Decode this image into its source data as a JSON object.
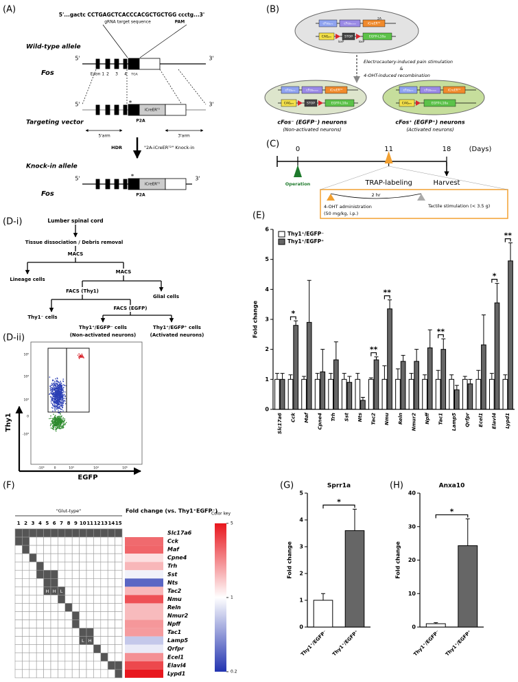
{
  "panel_labels": [
    "(A)",
    "(B)",
    "(C)",
    "(D-i)",
    "(D-ii)",
    "(E)",
    "(F)",
    "(G)",
    "(H)"
  ],
  "panel_a": {
    "sequence": "5'...gactc CCTGAGCTCACCCACGCTGCTGG ccctg...3'",
    "grna": "gRNA target sequence",
    "pam": "PAM",
    "wild_type": "Wild-type allele",
    "five_prime": "5'",
    "three_prime": "3'",
    "gene": "Fos",
    "exons": [
      "Exon 1",
      "2",
      "3",
      "4"
    ],
    "stop": "TGA",
    "targeting": "Targeting vector",
    "p2a": "P2A",
    "cre": "iCreERᵀ²",
    "arm5": "5'arm",
    "arm3": "3'arm",
    "hdr": "HDR",
    "knockin_text": "\"2A-iCreERᵀ²\" Knock-in",
    "knockin": "Knock-in allele",
    "star": "*"
  },
  "panel_b": {
    "fos_pro": "cFosₚᵣₒ",
    "fos_exon": "cFosₑₓₒₙ",
    "cre": "iCreERᵀ²",
    "two_a": "2A",
    "cag": "CAGₚᵣₒ",
    "stop": "STOP",
    "egfp": "EGFP-L10a",
    "loxp": "loxP",
    "step1": "Electrocautery-induced pain stimulation",
    "amp": "&",
    "step2": "4-OHT-induced recombination",
    "neg": "cFos⁻ (EGFP⁻) neurons",
    "neg_sub": "(Non-activated neurons)",
    "pos": "cFos⁺ (EGFP⁺) neurons",
    "pos_sub": "(Activated neurons)"
  },
  "panel_c": {
    "days": [
      0,
      11,
      18
    ],
    "unit": "(Days)",
    "operation": "Operation",
    "trap": "TRAP-labeling",
    "harvest": "Harvest",
    "interval": "2 hr",
    "ohta": "4-OHT administration",
    "dose": "(50 mg/kg, i.p.)",
    "tactile": "Tactile stimulation (< 3.5 g)"
  },
  "panel_d_i": {
    "start": "Lumber spinal cord",
    "dissociation": "Tissue dissociation / Debris removal",
    "macs": "MACS",
    "lineage": "Lineage cells",
    "glial": "Glial cells",
    "facs_thy1": "FACS (Thy1)",
    "thy1_neg": "Thy1⁻ cells",
    "facs_egfp": "FACS (EGFP)",
    "egfp_neg": "Thy1⁺/EGFP⁻ cells",
    "egfp_neg_sub": "(Non-activated neurons)",
    "egfp_pos": "Thy1⁺/EGFP⁺ cells",
    "egfp_pos_sub": "(Activated neurons)"
  },
  "panel_d_ii": {
    "y_label": "Thy1",
    "x_label": "EGFP",
    "x_ticks": [
      "-10³",
      "0",
      "10³",
      "10⁴",
      "10⁵"
    ],
    "y_ticks": [
      "10⁵",
      "10⁴",
      "10³",
      "0",
      "-10³"
    ]
  },
  "chart_data": [
    {
      "type": "bar",
      "ylabel": "Fold change",
      "legend": "upper left",
      "categories": [
        "Slc17a6",
        "Cck",
        "Maf",
        "Cpne4",
        "Trh",
        "Sst",
        "Nts",
        "Tac2",
        "Nmu",
        "Reln",
        "Nmur2",
        "Npff",
        "Tac1",
        "Lamp5",
        "Qrfpr",
        "Ecel1",
        "Elavl4",
        "Lypd1"
      ],
      "series": [
        {
          "name": "Thy1⁺/EGFP⁻",
          "color": "#ffffff",
          "values": [
            1,
            1,
            1,
            1,
            1,
            1,
            1,
            1,
            1,
            1,
            1,
            1,
            1,
            1,
            1,
            1,
            1,
            1
          ],
          "errors": [
            0.2,
            0.15,
            0.1,
            0.2,
            0.2,
            0.2,
            0.2,
            0.05,
            0.45,
            0.35,
            0.2,
            0.15,
            0.3,
            0.15,
            0.1,
            0.3,
            0.2,
            0.15
          ]
        },
        {
          "name": "Thy1⁺/EGFP⁺",
          "color": "#666666",
          "values": [
            1.0,
            2.8,
            2.9,
            1.25,
            1.65,
            0.9,
            0.3,
            1.65,
            3.35,
            1.6,
            1.6,
            2.05,
            2.0,
            0.65,
            0.85,
            2.15,
            3.55,
            4.95
          ],
          "errors": [
            0.2,
            0.15,
            1.4,
            0.75,
            0.6,
            0.2,
            0.1,
            0.1,
            0.3,
            0.2,
            0.4,
            0.6,
            0.35,
            0.15,
            0.15,
            1.0,
            0.65,
            0.6
          ]
        }
      ],
      "significance": [
        null,
        "*",
        null,
        null,
        null,
        null,
        null,
        "**",
        "**",
        null,
        null,
        null,
        "**",
        null,
        null,
        null,
        "*",
        "**"
      ],
      "ylim": [
        0,
        6
      ],
      "yticks": [
        0,
        1,
        2,
        3,
        4,
        5,
        6
      ]
    },
    {
      "type": "bar",
      "title": "Sprr1a",
      "ylabel": "Fold change",
      "categories": [
        "Thy1⁺/EGFP⁻",
        "Thy1⁺/EGFP⁺"
      ],
      "colors": [
        "#ffffff",
        "#666666"
      ],
      "values": [
        1.0,
        3.6
      ],
      "errors": [
        0.25,
        0.8
      ],
      "significance": "*",
      "ylim": [
        0,
        5
      ],
      "yticks": [
        0,
        1,
        2,
        3,
        4,
        5
      ]
    },
    {
      "type": "bar",
      "title": "Anxa10",
      "ylabel": "Fold change",
      "categories": [
        "Thy1⁺/EGFP⁻",
        "Thy1⁺/EGFP⁺"
      ],
      "colors": [
        "#ffffff",
        "#666666"
      ],
      "values": [
        1.0,
        24.3
      ],
      "errors": [
        0.3,
        8
      ],
      "significance": "*",
      "ylim": [
        0,
        40
      ],
      "yticks": [
        0,
        10,
        20,
        30,
        40
      ]
    }
  ],
  "heatmap": {
    "group_label": "\"Glut-type\"",
    "title": "Fold change (vs. Thy1⁺EGFP⁻)",
    "column_labels": [
      "1",
      "2",
      "3",
      "4",
      "5",
      "6",
      "7",
      "8",
      "9",
      "10",
      "11",
      "12",
      "13",
      "14",
      "15"
    ],
    "rows": [
      {
        "gene": "Slc17a6",
        "columns": [
          1,
          2,
          3,
          4,
          5,
          6,
          7,
          8,
          9,
          10,
          11,
          12,
          13,
          14,
          15
        ]
      },
      {
        "gene": "Cck",
        "columns": [
          1,
          2
        ]
      },
      {
        "gene": "Maf",
        "columns": [
          2
        ]
      },
      {
        "gene": "Cpne4",
        "columns": [
          3
        ]
      },
      {
        "gene": "Trh",
        "columns": [
          4
        ]
      },
      {
        "gene": "Sst",
        "columns": [
          4,
          5,
          6
        ]
      },
      {
        "gene": "Nts",
        "columns": [
          5,
          6
        ]
      },
      {
        "gene": "Tac2",
        "columns": [
          5,
          6,
          7
        ],
        "labels": [
          "H",
          "H",
          "L"
        ]
      },
      {
        "gene": "Nmu",
        "columns": [
          7
        ]
      },
      {
        "gene": "Reln",
        "columns": [
          8
        ]
      },
      {
        "gene": "Nmur2",
        "columns": [
          9
        ]
      },
      {
        "gene": "Npff",
        "columns": [
          9
        ]
      },
      {
        "gene": "Tac1",
        "columns": [
          10,
          11
        ]
      },
      {
        "gene": "Lamp5",
        "columns": [
          10,
          11
        ],
        "labels": [
          "L",
          "H"
        ]
      },
      {
        "gene": "Qrfpr",
        "columns": [
          12
        ]
      },
      {
        "gene": "Ecel1",
        "columns": [
          13
        ]
      },
      {
        "gene": "Elavl4",
        "columns": [
          14,
          15
        ]
      },
      {
        "gene": "Lypd1",
        "columns": [
          15
        ]
      }
    ],
    "values": [
      1.0,
      2.8,
      2.9,
      1.25,
      1.65,
      0.9,
      0.3,
      1.65,
      3.35,
      1.6,
      1.6,
      2.05,
      2.0,
      0.65,
      0.85,
      2.15,
      3.55,
      4.95
    ],
    "log_scale": true,
    "key_label": "Color key",
    "key_ticks": [
      5,
      1,
      0.2
    ],
    "colors": [
      "#2233b0",
      "#ffffff",
      "#e8161d"
    ]
  }
}
